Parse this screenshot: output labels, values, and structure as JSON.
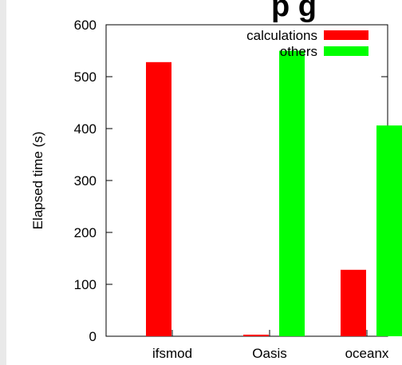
{
  "header": {
    "title_fragment": "p g"
  },
  "chart_data": {
    "type": "bar",
    "title": "",
    "xlabel": "",
    "ylabel": "Elapsed time (s)",
    "ylim": [
      0,
      600
    ],
    "yticks": [
      "0",
      "100",
      "200",
      "300",
      "400",
      "500",
      "600"
    ],
    "categories": [
      "ifsmod",
      "Oasis",
      "oceanx"
    ],
    "legend_position": "top-right",
    "grid": false,
    "series": [
      {
        "name": "calculations",
        "color": "#ff0000",
        "values": [
          528,
          3,
          128
        ]
      },
      {
        "name": "others",
        "color": "#00ff00",
        "values": [
          0,
          550,
          406
        ]
      }
    ]
  }
}
